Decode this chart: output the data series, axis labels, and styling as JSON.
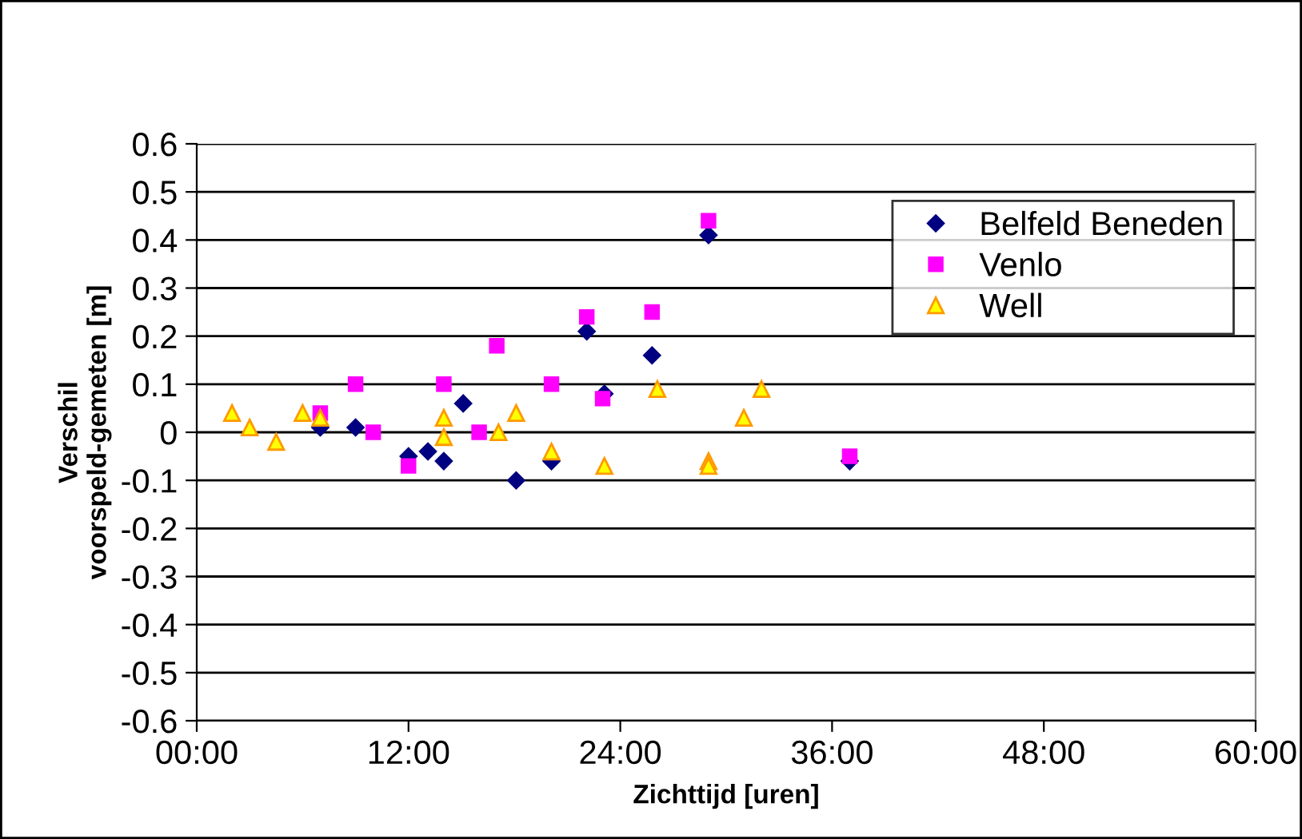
{
  "chart_data": {
    "type": "scatter",
    "xlabel": "Zichttijd [uren]",
    "ylabel": "Verschil\nvoorspeld-gemeten [m]",
    "xlim": [
      0,
      60
    ],
    "xticks": [
      {
        "value": 0,
        "label": "00:00"
      },
      {
        "value": 12,
        "label": "12:00"
      },
      {
        "value": 24,
        "label": "24:00"
      },
      {
        "value": 36,
        "label": "36:00"
      },
      {
        "value": 48,
        "label": "48:00"
      },
      {
        "value": 60,
        "label": "60:00"
      }
    ],
    "ylim": [
      -0.6,
      0.6
    ],
    "yticks": [
      -0.6,
      -0.5,
      -0.4,
      -0.3,
      -0.2,
      -0.1,
      0,
      0.1,
      0.2,
      0.3,
      0.4,
      0.5,
      0.6
    ],
    "grid": "y",
    "legend": "top right",
    "series": [
      {
        "name": "Belfeld Beneden",
        "color": "#000080",
        "marker": "diamond",
        "x": [
          7,
          9,
          12,
          13.1,
          14,
          15.1,
          18.1,
          20.1,
          22.1,
          23.1,
          25.8,
          29,
          37
        ],
        "values": [
          0.01,
          0.01,
          -0.05,
          -0.04,
          -0.06,
          0.06,
          -0.1,
          -0.06,
          0.21,
          0.08,
          0.16,
          0.41,
          -0.06
        ]
      },
      {
        "name": "Venlo",
        "color": "#ff00ff",
        "marker": "square",
        "x": [
          7,
          9,
          10,
          12,
          14,
          16,
          17,
          20.1,
          22.1,
          23,
          25.8,
          29,
          37
        ],
        "values": [
          0.04,
          0.1,
          0.0,
          -0.07,
          0.1,
          0.0,
          0.18,
          0.1,
          0.24,
          0.07,
          0.25,
          0.44,
          -0.05
        ]
      },
      {
        "name": "Well",
        "color": "#ff9900",
        "marker": "triangle",
        "x": [
          2,
          3,
          4.5,
          6,
          7,
          14,
          14,
          17.1,
          18.1,
          20.1,
          23.1,
          26.1,
          31,
          32,
          29,
          29
        ],
        "values": [
          0.04,
          0.01,
          -0.02,
          0.04,
          0.03,
          0.03,
          -0.01,
          0.0,
          0.04,
          -0.04,
          -0.07,
          0.09,
          0.03,
          0.09,
          -0.06,
          -0.07
        ]
      }
    ]
  }
}
